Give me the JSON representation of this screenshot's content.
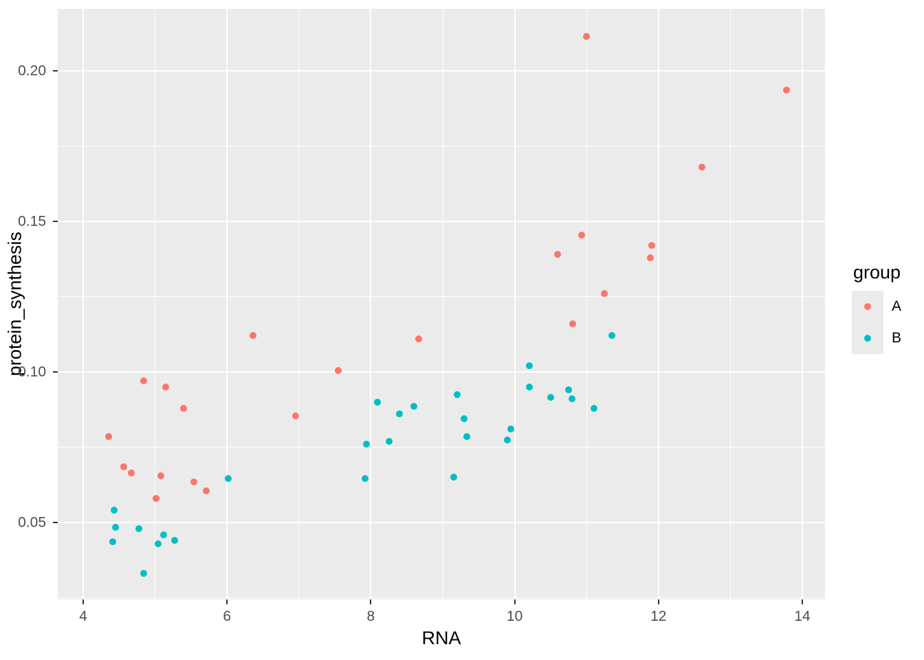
{
  "chart_data": {
    "type": "scatter",
    "title": "",
    "xlabel": "RNA",
    "ylabel": "protein_synthesis",
    "legend_title": "group",
    "legend_position": "right",
    "grid": true,
    "x_ticks": [
      4,
      6,
      8,
      10,
      12,
      14
    ],
    "x_tick_labels": [
      "4",
      "6",
      "8",
      "10",
      "12",
      "14"
    ],
    "y_ticks": [
      0.05,
      0.1,
      0.15,
      0.2
    ],
    "y_tick_labels": [
      "0.05",
      "0.10",
      "0.15",
      "0.20"
    ],
    "xlim": [
      3.65,
      14.32
    ],
    "ylim": [
      0.0244,
      0.2206
    ],
    "series": [
      {
        "name": "A",
        "color": "#F8766D",
        "points": [
          [
            4.35,
            0.0785
          ],
          [
            4.56,
            0.0685
          ],
          [
            4.67,
            0.0665
          ],
          [
            4.84,
            0.097
          ],
          [
            5.01,
            0.058
          ],
          [
            5.08,
            0.0655
          ],
          [
            5.15,
            0.095
          ],
          [
            5.4,
            0.088
          ],
          [
            5.54,
            0.0635
          ],
          [
            5.71,
            0.0605
          ],
          [
            6.36,
            0.112
          ],
          [
            6.95,
            0.0855
          ],
          [
            7.55,
            0.1005
          ],
          [
            8.67,
            0.111
          ],
          [
            10.6,
            0.139
          ],
          [
            10.81,
            0.116
          ],
          [
            10.93,
            0.1455
          ],
          [
            11.0,
            0.2115
          ],
          [
            11.25,
            0.126
          ],
          [
            11.89,
            0.138
          ],
          [
            11.91,
            0.142
          ],
          [
            12.6,
            0.168
          ],
          [
            13.78,
            0.1935
          ]
        ]
      },
      {
        "name": "B",
        "color": "#00BFC4",
        "points": [
          [
            4.41,
            0.0435
          ],
          [
            4.43,
            0.054
          ],
          [
            4.45,
            0.0485
          ],
          [
            4.77,
            0.048
          ],
          [
            4.84,
            0.033
          ],
          [
            5.04,
            0.043
          ],
          [
            5.12,
            0.046
          ],
          [
            5.27,
            0.044
          ],
          [
            6.02,
            0.0645
          ],
          [
            7.92,
            0.0645
          ],
          [
            7.94,
            0.076
          ],
          [
            8.09,
            0.09
          ],
          [
            8.25,
            0.077
          ],
          [
            8.4,
            0.086
          ],
          [
            8.6,
            0.0885
          ],
          [
            9.15,
            0.065
          ],
          [
            9.2,
            0.0925
          ],
          [
            9.3,
            0.0845
          ],
          [
            9.33,
            0.0785
          ],
          [
            9.9,
            0.0775
          ],
          [
            9.95,
            0.081
          ],
          [
            10.2,
            0.102
          ],
          [
            10.2,
            0.095
          ],
          [
            10.5,
            0.0915
          ],
          [
            10.75,
            0.094
          ],
          [
            10.8,
            0.091
          ],
          [
            11.1,
            0.088
          ],
          [
            11.35,
            0.112
          ]
        ]
      }
    ],
    "colors": {
      "panel_background": "#EBEBEB",
      "gridline": "#FFFFFF",
      "tick_mark": "#333333",
      "tick_label": "#4D4D4D",
      "axis_title": "#000000",
      "legend_key_background": "#EBEBEB"
    }
  }
}
